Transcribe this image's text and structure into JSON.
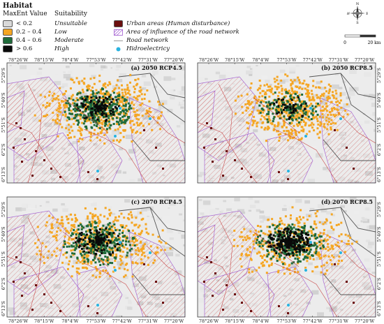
{
  "legend": {
    "title": "Habitat",
    "value_header": "MaxEnt Value",
    "suit_header": "Suitability",
    "classes": [
      {
        "value": "< 0.2",
        "suit": "Unsuitable",
        "color": "#d9d9d9"
      },
      {
        "value": "0.2 – 0.4",
        "suit": "Low",
        "color": "#f5a623"
      },
      {
        "value": "0.4 – 0.6",
        "suit": "Moderate",
        "color": "#1f6b3a"
      },
      {
        "value": "> 0.6",
        "suit": "High",
        "color": "#0a0a0a"
      }
    ],
    "layers": [
      {
        "label": "Urban areas (Human disturbance)",
        "color": "#6b0f0f"
      },
      {
        "label": "Area of influence of the road network",
        "color": "#a05ad0"
      },
      {
        "label": "Road network",
        "color": "#c84a4a"
      },
      {
        "label": "Hidroelectricy",
        "color": "#2ab3e0"
      }
    ]
  },
  "compass": {
    "n": "N",
    "s": "S",
    "e": "E",
    "w": "W"
  },
  "scale": {
    "start": "0",
    "end": "20 km"
  },
  "ticks": {
    "x": [
      "78°26'W",
      "78°15'W",
      "78°4'W",
      "77°53'W",
      "77°42'W",
      "77°31'W",
      "77°20'W"
    ],
    "y": [
      "5°29'S",
      "5°40'S",
      "5°51'S",
      "6°2'S",
      "6°13'S"
    ]
  },
  "panels": [
    {
      "title": "(a) 2050 RCP4.5"
    },
    {
      "title": "(b) 2050 RCP8.5"
    },
    {
      "title": "(c) 2070 RCP4.5"
    },
    {
      "title": "(d) 2070 RCP8.5"
    }
  ]
}
